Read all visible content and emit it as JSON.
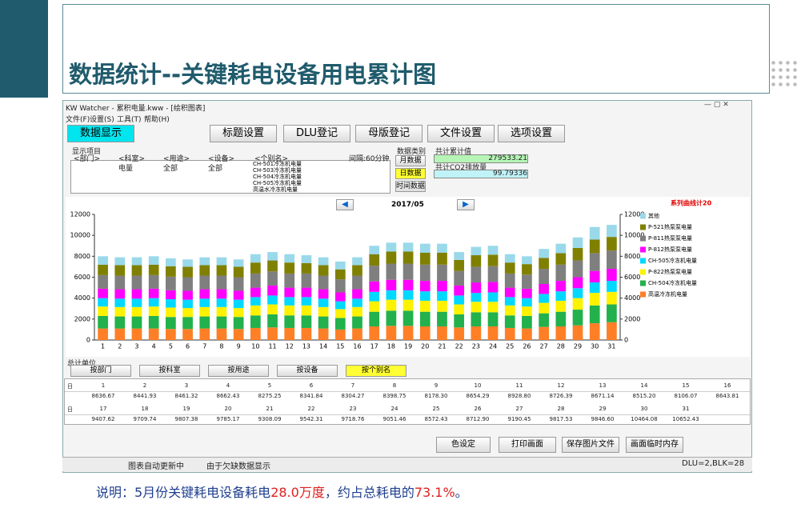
{
  "slide": {
    "title": "数据统计--关键耗电设备用电累计图",
    "caption": [
      "说明：5月份关键耗电设备耗电",
      "28.0万度",
      "，约占总耗电的",
      "73.1%",
      "。"
    ]
  },
  "window": {
    "title": "KW Watcher - 累积电量.kww - [绘积图表]",
    "menu": [
      "文件(F)",
      "设置(S)",
      "工具(T)",
      "帮助(H)"
    ],
    "toolbar": [
      "数据显示",
      "标题设置",
      "DLU登记",
      "母版登记",
      "文件设置",
      "选项设置"
    ]
  },
  "filter": {
    "label": "显示项目",
    "columns": [
      "<部门>",
      "<科室>",
      "<用途>",
      "<设备>",
      "<个别名>"
    ],
    "values": [
      "电量",
      "全部",
      "全部"
    ],
    "names": [
      "CH-501冷冻机电量",
      "CH-503冷冻机电量",
      "CH-504冷冻机电量",
      "CH-505冷冻机电量",
      "高温水冷冻机电量"
    ],
    "interval": "间隔:60分钟",
    "data_type_label": "数据类别",
    "data_types": [
      "月数据",
      "日数据",
      "时间数据"
    ],
    "total_label": "共计累计值",
    "total": "279533.21",
    "co2_label": "共计CO2排放量",
    "co2": "99.79336"
  },
  "nav": {
    "period": "2017/05"
  },
  "chart_data": {
    "type": "stacked-bar",
    "legend_title": "系列曲线计20",
    "grid": false,
    "categories": [
      "1",
      "2",
      "3",
      "4",
      "5",
      "6",
      "7",
      "8",
      "9",
      "10",
      "11",
      "12",
      "13",
      "14",
      "15",
      "16",
      "17",
      "18",
      "19",
      "20",
      "21",
      "22",
      "23",
      "24",
      "25",
      "26",
      "27",
      "28",
      "29",
      "30",
      "31"
    ],
    "ylim": [
      0,
      12000
    ],
    "yticks": [
      0,
      2000,
      4000,
      6000,
      8000,
      10000,
      12000
    ],
    "y2lim": [
      0,
      12000
    ],
    "y2ticks": [
      0,
      2000,
      4000,
      6000,
      8000,
      10000,
      12000
    ],
    "series": [
      {
        "name": "高温冷冻机电量",
        "color": "#ff7f27",
        "values": [
          1100,
          1100,
          1100,
          1100,
          1050,
          1050,
          1100,
          1100,
          1050,
          1150,
          1200,
          1150,
          1150,
          1100,
          1000,
          1100,
          1300,
          1350,
          1350,
          1300,
          1300,
          1200,
          1300,
          1300,
          1150,
          1100,
          1250,
          1300,
          1400,
          1600,
          1700
        ]
      },
      {
        "name": "CH-504冷冻机电量",
        "color": "#22b14c",
        "values": [
          1200,
          1150,
          1150,
          1200,
          1150,
          1150,
          1150,
          1150,
          1150,
          1200,
          1250,
          1200,
          1200,
          1150,
          1100,
          1150,
          1400,
          1450,
          1450,
          1400,
          1400,
          1250,
          1350,
          1350,
          1200,
          1200,
          1300,
          1400,
          1500,
          1700,
          1700
        ]
      },
      {
        "name": "P-822热泵泵电量",
        "color": "#fff200",
        "values": [
          900,
          900,
          900,
          900,
          900,
          850,
          900,
          900,
          850,
          950,
          950,
          950,
          950,
          900,
          850,
          900,
          1000,
          1050,
          1050,
          1050,
          1050,
          950,
          1000,
          1000,
          950,
          900,
          1000,
          1050,
          1100,
          1200,
          1200
        ]
      },
      {
        "name": "CH-505冷冻机电量",
        "color": "#00d8ff",
        "values": [
          800,
          800,
          800,
          800,
          800,
          800,
          800,
          800,
          800,
          800,
          850,
          800,
          800,
          800,
          750,
          800,
          900,
          900,
          900,
          900,
          900,
          850,
          850,
          900,
          800,
          800,
          850,
          900,
          950,
          1000,
          1050
        ]
      },
      {
        "name": "P-812热泵泵电量",
        "color": "#ff00ff",
        "values": [
          900,
          900,
          900,
          900,
          850,
          850,
          900,
          900,
          850,
          900,
          950,
          900,
          900,
          900,
          850,
          900,
          1000,
          1000,
          1000,
          1000,
          1000,
          950,
          1000,
          1000,
          900,
          900,
          950,
          1000,
          1050,
          1100,
          1150
        ]
      },
      {
        "name": "P-811热泵泵电量",
        "color": "#7f7f7f",
        "values": [
          1300,
          1300,
          1300,
          1300,
          1300,
          1300,
          1300,
          1300,
          1300,
          1350,
          1350,
          1350,
          1350,
          1300,
          1250,
          1300,
          1500,
          1550,
          1550,
          1550,
          1550,
          1400,
          1500,
          1500,
          1350,
          1350,
          1450,
          1550,
          1600,
          1700,
          1750
        ]
      },
      {
        "name": "P-521热泵泵电量",
        "color": "#808000",
        "values": [
          1000,
          1000,
          1000,
          1000,
          1000,
          1000,
          1000,
          1000,
          1000,
          1050,
          1050,
          1050,
          1000,
          1000,
          950,
          1000,
          1100,
          1150,
          1150,
          1150,
          1150,
          1050,
          1100,
          1100,
          1050,
          1000,
          1050,
          1100,
          1200,
          1300,
          1300
        ]
      },
      {
        "name": "其他",
        "color": "#99d9ea",
        "values": [
          800,
          750,
          750,
          800,
          750,
          700,
          750,
          750,
          700,
          800,
          800,
          800,
          750,
          750,
          750,
          750,
          800,
          850,
          850,
          850,
          850,
          750,
          800,
          850,
          800,
          750,
          850,
          900,
          1000,
          1200,
          1150
        ]
      }
    ]
  },
  "units": {
    "label": "总计单位",
    "buttons": [
      "按部门",
      "按科室",
      "按用途",
      "按设备",
      "按个别名"
    ]
  },
  "table": {
    "groups": [
      {
        "label": "日",
        "days": [
          "1",
          "2",
          "3",
          "4",
          "5",
          "6",
          "7",
          "8",
          "9",
          "10",
          "11",
          "12",
          "13",
          "14",
          "15",
          "16"
        ],
        "values": [
          "8636.67",
          "8441.93",
          "8461.32",
          "8662.43",
          "8275.25",
          "8341.84",
          "8304.27",
          "8398.75",
          "8178.30",
          "8654.29",
          "8928.80",
          "8726.39",
          "8671.14",
          "8515.20",
          "8106.07",
          "8643.81"
        ]
      },
      {
        "label": "日",
        "days": [
          "17",
          "18",
          "19",
          "20",
          "21",
          "22",
          "23",
          "24",
          "25",
          "26",
          "27",
          "28",
          "29",
          "30",
          "31"
        ],
        "values": [
          "9407.62",
          "9709.74",
          "9807.38",
          "9785.17",
          "9308.09",
          "9542.31",
          "9718.76",
          "9051.46",
          "8572.43",
          "8712.90",
          "9190.45",
          "9817.53",
          "9846.60",
          "10464.08",
          "10652.43"
        ]
      }
    ]
  },
  "actions": [
    "色设定",
    "打印画面",
    "保存图片文件",
    "画面临时内存"
  ],
  "status": [
    "图表自动更新中",
    "由于欠缺数据显示",
    "DLU=2,BLK=28"
  ]
}
